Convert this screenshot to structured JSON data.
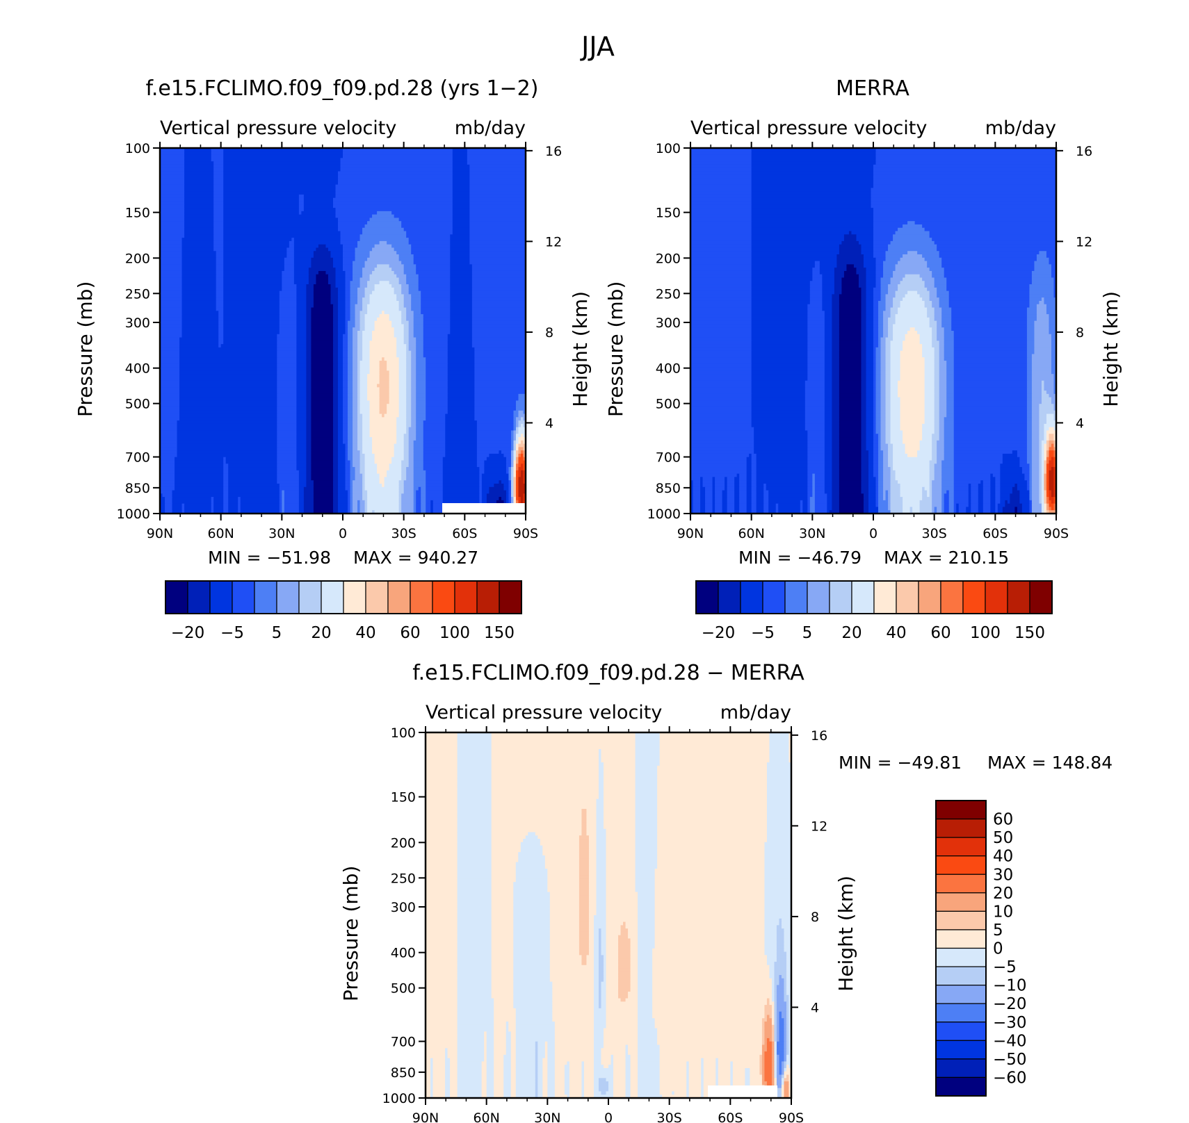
{
  "title": "JJA",
  "colors": {
    "panel_scale": [
      "#00007f",
      "#0020b8",
      "#0035e0",
      "#1f4ff5",
      "#4d7ff5",
      "#87a8f5",
      "#b5cef5",
      "#d6e8fb",
      "#ffead6",
      "#fbc9ab",
      "#f8a57c",
      "#fb7440",
      "#fa4a12",
      "#e2310a",
      "#b81e05",
      "#7f0000"
    ],
    "diff_scale": [
      "#00007f",
      "#0020b8",
      "#0035e0",
      "#1f4ff5",
      "#4d7ff5",
      "#87a8f5",
      "#b5cef5",
      "#d6e8fb",
      "#ffead6",
      "#fbc9ab",
      "#f8a57c",
      "#fb7440",
      "#fa4a12",
      "#e2310a",
      "#b81e05",
      "#7f0000"
    ]
  },
  "chart_data": [
    {
      "type": "heatmap",
      "title": "f.e15.FCLIMO.f09_f09.pd.28 (yrs 1−2)",
      "subtitle_left": "Vertical pressure velocity",
      "subtitle_right": "mb/day",
      "ylabel": "Pressure (mb)",
      "ylabel_right": "Height (km)",
      "x_ticks": [
        "90N",
        "60N",
        "30N",
        "0",
        "30S",
        "60S",
        "90S"
      ],
      "x_range": [
        90,
        -90
      ],
      "y_ticks": [
        100,
        150,
        200,
        250,
        300,
        400,
        500,
        700,
        850,
        1000
      ],
      "y_range": [
        100,
        1000
      ],
      "height_ticks": [
        16,
        12,
        8,
        4
      ],
      "min_label": "MIN = −51.98",
      "max_label": "MAX = 940.27",
      "colorbar_labels": [
        "−20",
        "−5",
        "5",
        "20",
        "40",
        "60",
        "100",
        "150"
      ],
      "colorbar_orientation": "horizontal",
      "field": "model"
    },
    {
      "type": "heatmap",
      "title": "MERRA",
      "subtitle_left": "Vertical pressure velocity",
      "subtitle_right": "mb/day",
      "ylabel": "Pressure (mb)",
      "ylabel_right": "Height (km)",
      "x_ticks": [
        "90N",
        "60N",
        "30N",
        "0",
        "30S",
        "60S",
        "90S"
      ],
      "x_range": [
        90,
        -90
      ],
      "y_ticks": [
        100,
        150,
        200,
        250,
        300,
        400,
        500,
        700,
        850,
        1000
      ],
      "y_range": [
        100,
        1000
      ],
      "height_ticks": [
        16,
        12,
        8,
        4
      ],
      "min_label": "MIN = −46.79",
      "max_label": "MAX = 210.15",
      "colorbar_labels": [
        "−20",
        "−5",
        "5",
        "20",
        "40",
        "60",
        "100",
        "150"
      ],
      "colorbar_orientation": "horizontal",
      "field": "obs"
    },
    {
      "type": "heatmap",
      "title": "f.e15.FCLIMO.f09_f09.pd.28 − MERRA",
      "subtitle_left": "Vertical pressure velocity",
      "subtitle_right": "mb/day",
      "ylabel": "Pressure (mb)",
      "ylabel_right": "Height (km)",
      "x_ticks": [
        "90N",
        "60N",
        "30N",
        "0",
        "30S",
        "60S",
        "90S"
      ],
      "x_range": [
        90,
        -90
      ],
      "y_ticks": [
        100,
        150,
        200,
        250,
        300,
        400,
        500,
        700,
        850,
        1000
      ],
      "y_range": [
        100,
        1000
      ],
      "height_ticks": [
        16,
        12,
        8,
        4
      ],
      "min_label": "MIN = −49.81",
      "max_label": "MAX = 148.84",
      "colorbar_labels": [
        "60",
        "50",
        "40",
        "30",
        "20",
        "10",
        "5",
        "0",
        "−5",
        "−10",
        "−20",
        "−30",
        "−40",
        "−50",
        "−60"
      ],
      "colorbar_orientation": "vertical",
      "field": "diff"
    }
  ]
}
